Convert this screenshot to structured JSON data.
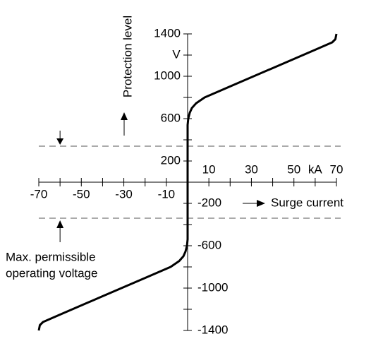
{
  "chart_data": {
    "type": "line",
    "y_label": "Protection level",
    "x_label": "Surge current",
    "y_unit": "V",
    "x_unit": "kA",
    "annotation": [
      "Max. permissible",
      "operating voltage"
    ],
    "x": [
      -70,
      -69.5,
      -68,
      -60,
      -40,
      -20,
      -8,
      -4,
      -2,
      -1,
      -0.3,
      0,
      0,
      0.3,
      1,
      2,
      4,
      8,
      20,
      40,
      60,
      68,
      69.5,
      70
    ],
    "series": [
      {
        "color": "#000000",
        "values": [
          -1400,
          -1350,
          -1320,
          -1250,
          -1077,
          -904,
          -800,
          -745,
          -700,
          -655,
          -600,
          -540,
          540,
          600,
          655,
          700,
          745,
          800,
          904,
          1077,
          1250,
          1320,
          1350,
          1400
        ]
      }
    ],
    "reference_lines": [
      340,
      -340
    ],
    "xlim": [
      -70,
      70
    ],
    "ylim": [
      -1400,
      1400
    ],
    "xticks": [
      -70,
      -50,
      -30,
      -10,
      10,
      30,
      50,
      70
    ],
    "xticks_minor": [
      -60,
      -40,
      -20,
      20,
      40,
      60
    ],
    "yticks": [
      -1400,
      -1000,
      -600,
      -200,
      200,
      600,
      1000,
      1400
    ],
    "yticks_minor": [
      -1200,
      -800,
      -400,
      400,
      800,
      1200
    ]
  }
}
